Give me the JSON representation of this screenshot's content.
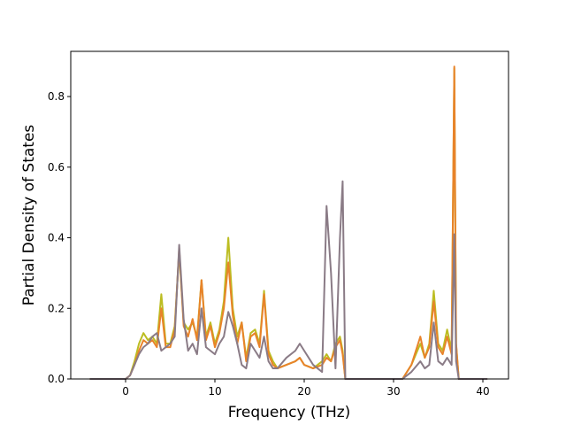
{
  "chart_data": {
    "type": "line",
    "xlabel": "Frequency (THz)",
    "ylabel": "Partial Density of States",
    "x": [
      -4,
      0,
      0.5,
      1,
      1.5,
      2,
      2.5,
      3,
      3.5,
      4,
      4.5,
      5,
      5.5,
      6,
      6.5,
      7,
      7.5,
      8,
      8.5,
      9,
      9.5,
      10,
      10.5,
      11,
      11.5,
      12,
      12.5,
      13,
      13.5,
      14,
      14.5,
      15,
      15.5,
      16,
      16.5,
      17,
      18,
      19,
      19.5,
      20,
      21,
      22,
      22.5,
      23,
      23.5,
      24,
      24.3,
      24.6,
      25,
      31,
      32,
      33,
      33.5,
      34,
      34.5,
      35,
      35.5,
      36,
      36.5,
      36.8,
      37,
      37.3,
      40.5
    ],
    "series": [
      {
        "color": "#bcbd22",
        "values": [
          0,
          0,
          0.01,
          0.05,
          0.1,
          0.13,
          0.11,
          0.12,
          0.1,
          0.24,
          0.1,
          0.1,
          0.15,
          0.36,
          0.16,
          0.14,
          0.16,
          0.12,
          0.28,
          0.12,
          0.16,
          0.1,
          0.14,
          0.22,
          0.4,
          0.2,
          0.12,
          0.16,
          0.06,
          0.13,
          0.14,
          0.1,
          0.25,
          0.08,
          0.05,
          0.03,
          0.04,
          0.05,
          0.06,
          0.04,
          0.03,
          0.05,
          0.07,
          0.05,
          0.1,
          0.12,
          0.08,
          0,
          0,
          0,
          0.04,
          0.1,
          0.06,
          0.1,
          0.25,
          0.1,
          0.08,
          0.14,
          0.08,
          0.88,
          0.1,
          0,
          0
        ]
      },
      {
        "color": "#e8832a",
        "values": [
          0,
          0,
          0.01,
          0.04,
          0.08,
          0.11,
          0.1,
          0.11,
          0.09,
          0.2,
          0.09,
          0.09,
          0.14,
          0.37,
          0.15,
          0.12,
          0.17,
          0.11,
          0.28,
          0.11,
          0.15,
          0.09,
          0.13,
          0.2,
          0.33,
          0.18,
          0.1,
          0.16,
          0.05,
          0.12,
          0.13,
          0.09,
          0.24,
          0.07,
          0.04,
          0.03,
          0.04,
          0.05,
          0.06,
          0.04,
          0.03,
          0.04,
          0.06,
          0.05,
          0.09,
          0.11,
          0.07,
          0,
          0,
          0,
          0.04,
          0.12,
          0.06,
          0.09,
          0.22,
          0.09,
          0.07,
          0.12,
          0.07,
          0.885,
          0.1,
          0,
          0
        ]
      },
      {
        "color": "#8a7b86",
        "values": [
          0,
          0,
          0.01,
          0.04,
          0.07,
          0.09,
          0.1,
          0.12,
          0.13,
          0.08,
          0.09,
          0.1,
          0.12,
          0.38,
          0.17,
          0.08,
          0.1,
          0.07,
          0.2,
          0.09,
          0.08,
          0.07,
          0.1,
          0.12,
          0.19,
          0.15,
          0.1,
          0.04,
          0.03,
          0.1,
          0.08,
          0.06,
          0.12,
          0.05,
          0.03,
          0.03,
          0.06,
          0.08,
          0.1,
          0.08,
          0.04,
          0.02,
          0.49,
          0.3,
          0.03,
          0.4,
          0.56,
          0,
          0,
          0,
          0.02,
          0.05,
          0.03,
          0.04,
          0.16,
          0.05,
          0.04,
          0.06,
          0.04,
          0.41,
          0.05,
          0,
          0
        ]
      }
    ],
    "xlim": [
      -6.14,
      42.87
    ],
    "xticks": [
      0,
      10,
      20,
      30,
      40
    ],
    "ylim": [
      0,
      0.928
    ],
    "yticks": [
      {
        "value": 0,
        "label": "0.0"
      },
      0.2,
      0.4,
      0.6,
      0.8
    ]
  }
}
